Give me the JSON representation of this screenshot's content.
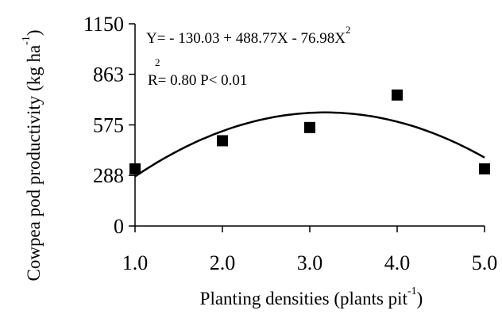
{
  "chart_data": {
    "type": "scatter",
    "xlabel": "Planting densities (plants pit",
    "xlabel_superscript": "-1",
    "xlabel_tail": ")",
    "ylabel": "Cowpea pod productivity (kg ha",
    "ylabel_superscript": "-1",
    "ylabel_tail": ")",
    "x_ticks": [
      "1.0",
      "2.0",
      "3.0",
      "4.0",
      "5.0"
    ],
    "x_tick_values": [
      1,
      2,
      3,
      4,
      5
    ],
    "y_ticks": [
      "0",
      "288",
      "575",
      "863",
      "1150"
    ],
    "y_tick_values": [
      0,
      288,
      575,
      863,
      1150
    ],
    "xlim": [
      1,
      5
    ],
    "ylim": [
      0,
      1150
    ],
    "grid": false,
    "series": [
      {
        "type": "scatter",
        "marker": "square",
        "color": "#000000",
        "x": [
          1,
          2,
          3,
          4,
          5
        ],
        "y": [
          325,
          485,
          560,
          745,
          325
        ]
      },
      {
        "type": "line",
        "color": "#000000",
        "equation": {
          "a": -130.03,
          "b": 488.77,
          "c": -76.98
        }
      }
    ],
    "annotations": {
      "equation": "Y= - 130.03 + 488.77X - 76.98X",
      "equation_superscript": "2",
      "r2_superscript": "2",
      "r2_text": "R= 0.80   P< 0.01"
    }
  }
}
